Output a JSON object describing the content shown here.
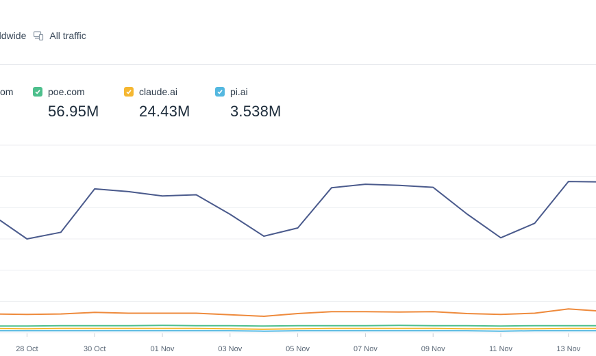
{
  "filters": {
    "region": "rldwide",
    "traffic_icon": "devices-icon",
    "traffic": "All traffic"
  },
  "legend": {
    "cut_label": "om",
    "items": [
      {
        "label": "poe.com",
        "value": "56.95M",
        "color": "#4dbf8c"
      },
      {
        "label": "claude.ai",
        "value": "24.43M",
        "color": "#f5b731"
      },
      {
        "label": "pi.ai",
        "value": "3.538M",
        "color": "#54b8e0"
      }
    ]
  },
  "chart_data": {
    "type": "line",
    "x": [
      "27 Oct",
      "28 Oct",
      "29 Oct",
      "30 Oct",
      "31 Oct",
      "01 Nov",
      "02 Nov",
      "03 Nov",
      "04 Nov",
      "05 Nov",
      "06 Nov",
      "07 Nov",
      "08 Nov",
      "09 Nov",
      "10 Nov",
      "11 Nov",
      "12 Nov",
      "13 Nov",
      "14 Nov"
    ],
    "xtick_labels": [
      "28 Oct",
      "30 Oct",
      "01 Nov",
      "03 Nov",
      "05 Nov",
      "07 Nov",
      "09 Nov",
      "11 Nov",
      "13 Nov"
    ],
    "series": [
      {
        "color": "#4a5a8c",
        "values": [
          300,
          240,
          257,
          368,
          361,
          350,
          353,
          303,
          247,
          268,
          371,
          380,
          377,
          372,
          304,
          243,
          280,
          387,
          386
        ]
      },
      {
        "color": "#ee8a3c",
        "values": [
          48,
          47,
          48,
          52,
          50,
          50,
          50,
          46,
          42,
          49,
          54,
          54,
          53,
          54,
          49,
          47,
          50,
          61,
          55
        ]
      },
      {
        "color": "#4dbf8c",
        "values": [
          17,
          17,
          18,
          18,
          18,
          19,
          18,
          18,
          17,
          18,
          18,
          18,
          19,
          18,
          18,
          17,
          18,
          18,
          18
        ]
      },
      {
        "color": "#f5b731",
        "values": [
          11,
          10,
          11,
          11,
          11,
          11,
          11,
          10,
          9,
          10,
          11,
          11,
          11,
          11,
          10,
          10,
          10,
          11,
          11
        ]
      },
      {
        "color": "#54b8e0",
        "values": [
          5,
          5,
          5,
          5,
          5,
          5,
          5,
          5,
          4,
          5,
          5,
          5,
          5,
          5,
          5,
          4,
          5,
          5,
          5
        ]
      }
    ],
    "ylim": [
      0,
      480
    ],
    "grid": true,
    "legend_position": "top"
  }
}
